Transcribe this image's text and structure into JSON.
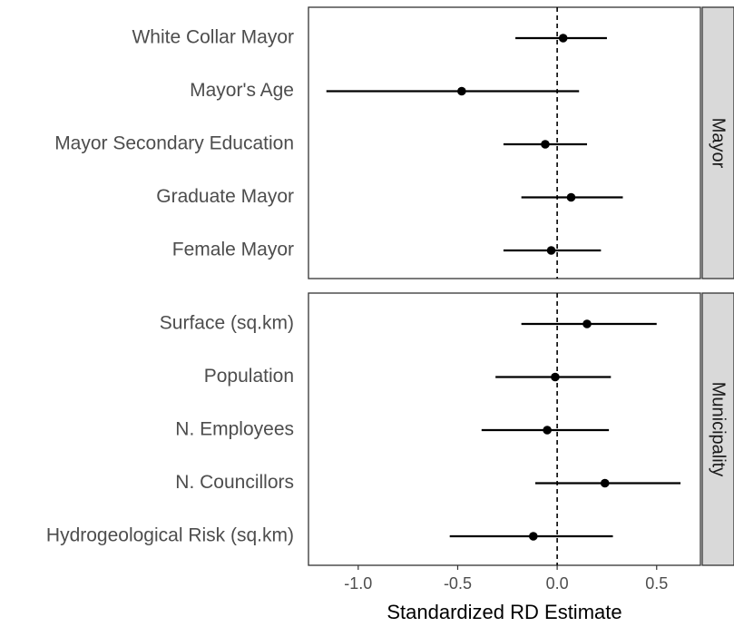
{
  "chart_data": {
    "type": "forest",
    "xlabel": "Standardized RD Estimate",
    "xlim": [
      -1.25,
      0.72
    ],
    "xticks": [
      -1.0,
      -0.5,
      0.0,
      0.5
    ],
    "xtick_labels": [
      "-1.0",
      "-0.5",
      "0.0",
      "0.5"
    ],
    "reference_line": 0,
    "grid": false,
    "panels": [
      {
        "strip": "Mayor",
        "rows": [
          {
            "label": "White Collar Mayor",
            "estimate": 0.03,
            "lower": -0.21,
            "upper": 0.25
          },
          {
            "label": "Mayor's Age",
            "estimate": -0.48,
            "lower": -1.16,
            "upper": 0.11
          },
          {
            "label": "Mayor Secondary Education",
            "estimate": -0.06,
            "lower": -0.27,
            "upper": 0.15
          },
          {
            "label": "Graduate Mayor",
            "estimate": 0.07,
            "lower": -0.18,
            "upper": 0.33
          },
          {
            "label": "Female Mayor",
            "estimate": -0.03,
            "lower": -0.27,
            "upper": 0.22
          }
        ]
      },
      {
        "strip": "Municipality",
        "rows": [
          {
            "label": "Surface (sq.km)",
            "estimate": 0.15,
            "lower": -0.18,
            "upper": 0.5
          },
          {
            "label": "Population",
            "estimate": -0.01,
            "lower": -0.31,
            "upper": 0.27
          },
          {
            "label": "N. Employees",
            "estimate": -0.05,
            "lower": -0.38,
            "upper": 0.26
          },
          {
            "label": "N. Councillors",
            "estimate": 0.24,
            "lower": -0.11,
            "upper": 0.62
          },
          {
            "label": "Hydrogeological Risk (sq.km)",
            "estimate": -0.12,
            "lower": -0.54,
            "upper": 0.28
          }
        ]
      }
    ]
  }
}
